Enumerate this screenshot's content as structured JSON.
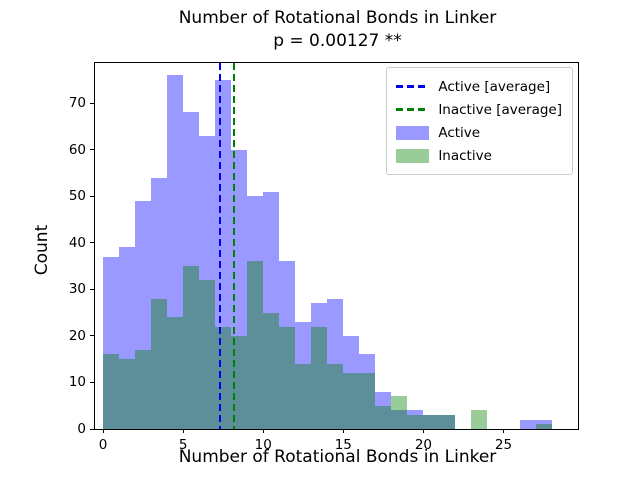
{
  "chart_data": {
    "type": "histogram",
    "title": "Number of Rotational Bonds in Linker",
    "subtitle": "p = 0.00127 **",
    "xlabel": "Number of Rotational Bonds in Linker",
    "ylabel": "Count",
    "bin_start": 0,
    "bin_width": 1,
    "x_ticks": [
      0,
      5,
      10,
      15,
      20,
      25
    ],
    "y_ticks": [
      0,
      10,
      20,
      30,
      40,
      50,
      60,
      70
    ],
    "xlim": [
      -0.5,
      29.65
    ],
    "ylim": [
      0,
      78.6
    ],
    "grid": false,
    "legend_position": "upper right",
    "series": [
      {
        "name": "Active",
        "color": "rgba(0,0,255,0.4)",
        "counts": [
          37,
          39,
          49,
          54,
          76,
          68,
          63,
          75,
          60,
          50,
          51,
          36,
          23,
          27,
          28,
          20,
          16,
          8,
          4,
          4,
          3,
          3,
          0,
          0,
          0,
          0,
          2,
          2
        ]
      },
      {
        "name": "Inactive",
        "color": "rgba(0,128,0,0.4)",
        "counts": [
          16,
          15,
          17,
          28,
          24,
          35,
          32,
          22,
          20,
          36,
          25,
          22,
          14,
          22,
          14,
          12,
          12,
          5,
          7,
          3,
          3,
          3,
          0,
          4,
          0,
          0,
          0,
          1
        ]
      }
    ],
    "avg_lines": [
      {
        "name": "Active [average]",
        "x": 7.3,
        "color": "#0000ee"
      },
      {
        "name": "Inactive [average]",
        "x": 8.2,
        "color": "#008000"
      }
    ]
  }
}
